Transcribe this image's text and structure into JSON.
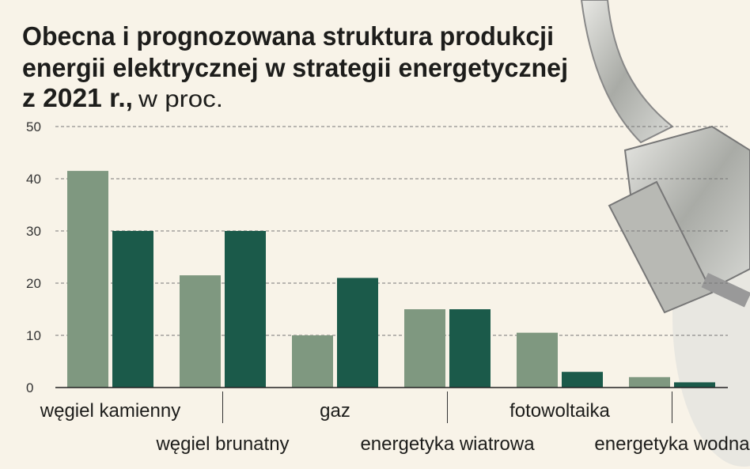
{
  "chart_data": {
    "type": "bar",
    "title": [
      "Obecna i prognozowana struktura produkcji",
      "energii elektrycznej w strategii energetycznej",
      "z 2021 r.,"
    ],
    "subtitle": "w proc.",
    "categories": [
      "węgiel kamienny",
      "węgiel brunatny",
      "gaz",
      "energetyka wiatrowa",
      "fotowoltaika",
      "energetyka wodna"
    ],
    "series": [
      {
        "color": "#7f9880",
        "values": [
          41.5,
          21.5,
          10,
          15,
          10.5,
          2
        ]
      },
      {
        "color": "#1b5a4a",
        "values": [
          30,
          30,
          21,
          15,
          3,
          1
        ]
      }
    ],
    "ylim": [
      0,
      50
    ],
    "yticks": [
      0,
      10,
      20,
      30,
      40,
      50
    ],
    "grid": true
  }
}
